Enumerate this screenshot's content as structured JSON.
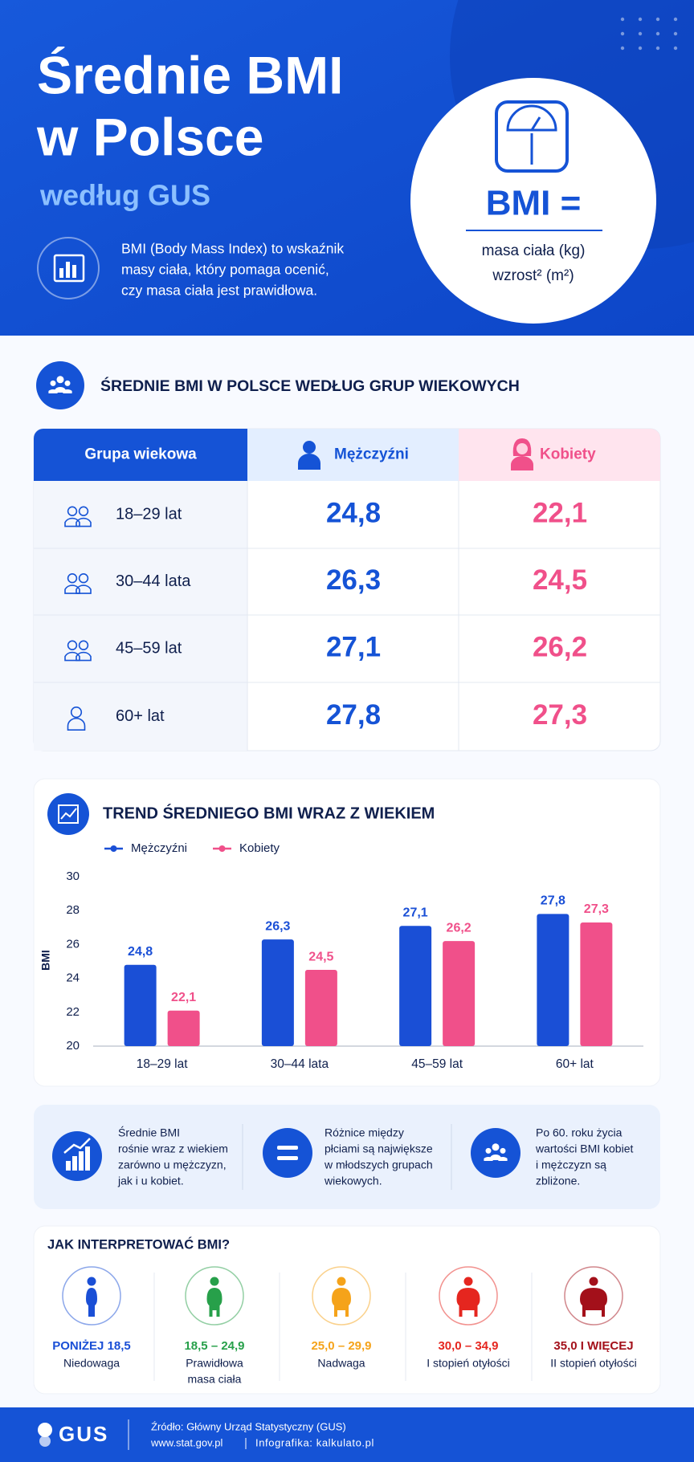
{
  "header": {
    "title_line1": "Średnie BMI",
    "title_line2": "w Polsce",
    "subtitle": "według GUS",
    "description": [
      "BMI (Body Mass Index) to wskaźnik",
      "masy ciała, który pomaga ocenić,",
      "czy masa ciała jest prawidłowa."
    ],
    "formula": {
      "left": "BMI =",
      "numerator": "masa ciała (kg)",
      "denominator": "wzrost² (m²)"
    }
  },
  "table": {
    "title": "ŚREDNIE BMI W POLSCE WEDŁUG GRUP WIEKOWYCH",
    "columns": [
      "Grupa wiekowa",
      "Mężczyźni",
      "Kobiety"
    ],
    "rows": [
      [
        "18–29 lat",
        "24,8",
        "22,1"
      ],
      [
        "30–44 lata",
        "26,3",
        "24,5"
      ],
      [
        "45–59 lat",
        "27,1",
        "26,2"
      ],
      [
        "60+ lat",
        "27,8",
        "27,3"
      ]
    ]
  },
  "chart_data": {
    "type": "bar",
    "title": "TREND ŚREDNIEGO BMI WRAZ Z WIEKIEM",
    "y_label": "BMI",
    "categories": [
      "18–29 lat",
      "30–44 lata",
      "45–59 lat",
      "60+ lat"
    ],
    "series": [
      {
        "name": "Mężczyźni",
        "color": "#1a4fd6",
        "values": [
          24.8,
          26.3,
          27.1,
          27.8
        ],
        "value_labels": [
          "24,8",
          "26,3",
          "27,1",
          "27,8"
        ]
      },
      {
        "name": "Kobiety",
        "color": "#f0508a",
        "values": [
          22.1,
          24.5,
          26.2,
          27.3
        ],
        "value_labels": [
          "22,1",
          "24,5",
          "26,2",
          "27,3"
        ]
      }
    ],
    "ylim": [
      20,
      30
    ],
    "yticks": [
      20,
      22,
      24,
      26,
      28,
      30
    ],
    "grid": false,
    "legend": "top-left"
  },
  "insights": [
    [
      "Średnie BMI",
      "rośnie wraz z wiekiem",
      "zarówno u mężczyzn,",
      "jak i u kobiet."
    ],
    [
      "Różnice między",
      "płciami są największe",
      "w młodszych grupach",
      "wiekowych."
    ],
    [
      "Po 60. roku życia",
      "wartości BMI kobiet",
      "i mężczyzn są",
      "zbliżone."
    ]
  ],
  "interpretation": {
    "title": "JAK INTERPRETOWAĆ BMI?",
    "categories": [
      {
        "range": "PONIŻEJ 18,5",
        "label": [
          "Niedowaga"
        ],
        "color": "#1a4fd6"
      },
      {
        "range": "18,5 – 24,9",
        "label": [
          "Prawidłowa",
          "masa ciała"
        ],
        "color": "#27a04a"
      },
      {
        "range": "25,0 – 29,9",
        "label": [
          "Nadwaga"
        ],
        "color": "#f5a31a"
      },
      {
        "range": "30,0 – 34,9",
        "label": [
          "I stopień otyłości"
        ],
        "color": "#e5261f"
      },
      {
        "range": "35,0 I WIĘCEJ",
        "label": [
          "II stopień otyłości"
        ],
        "color": "#a3101a"
      }
    ]
  },
  "footer": {
    "logo": "GUS",
    "source": "Źródło: Główny Urząd Statystyczny (GUS)",
    "site": "www.stat.gov.pl",
    "credit": "Infografika: kalkulato.pl"
  }
}
